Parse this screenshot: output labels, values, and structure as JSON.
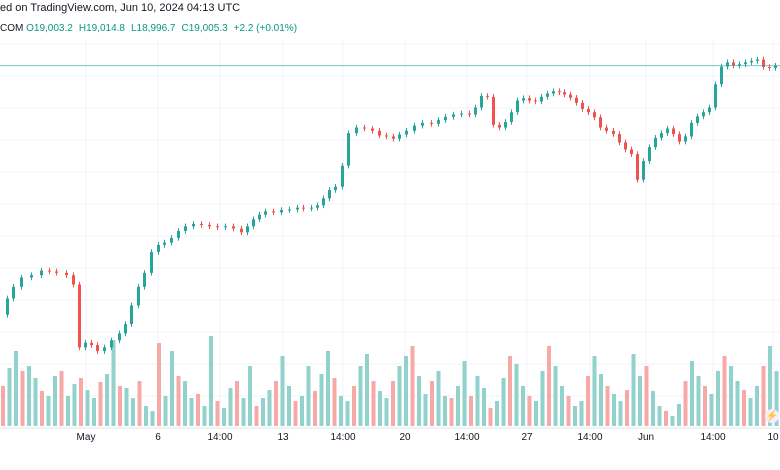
{
  "header": {
    "published": "ed on TradingView.com, Jun 10, 2024 04:13 UTC"
  },
  "ohlc": {
    "symbol": "COM",
    "open": "O19,003.2",
    "high": "H19,014.8",
    "low": "L18,996.7",
    "close": "C19,005.3",
    "change": "+2.2 (+0.01%)"
  },
  "colors": {
    "up": "#26a69a",
    "down": "#ef5350",
    "volume_up": "#92d2cc",
    "volume_down": "#f7a9a7",
    "last_price_line": "#26a69a",
    "grid": "#f0f3fa"
  },
  "icons": {
    "bolt": "lightning-icon"
  },
  "chart_data": {
    "type": "candlestick",
    "y_scale": "price, unlabeled (axis cut off)",
    "grid": true,
    "x_ticks": [
      "May",
      "6",
      "14:00",
      "13",
      "14:00",
      "20",
      "14:00",
      "27",
      "14:00",
      "Jun",
      "14:00",
      "10"
    ],
    "price_points": [
      [
        0,
        18310
      ],
      [
        6,
        18345
      ],
      [
        12,
        18370
      ],
      [
        20,
        18390
      ],
      [
        30,
        18395
      ],
      [
        40,
        18405
      ],
      [
        48,
        18403
      ],
      [
        55,
        18400
      ],
      [
        65,
        18395
      ],
      [
        72,
        18375
      ],
      [
        78,
        18240
      ],
      [
        84,
        18250
      ],
      [
        90,
        18245
      ],
      [
        96,
        18232
      ],
      [
        103,
        18240
      ],
      [
        110,
        18255
      ],
      [
        118,
        18270
      ],
      [
        124,
        18290
      ],
      [
        130,
        18330
      ],
      [
        137,
        18370
      ],
      [
        143,
        18400
      ],
      [
        150,
        18445
      ],
      [
        157,
        18460
      ],
      [
        163,
        18465
      ],
      [
        170,
        18475
      ],
      [
        177,
        18490
      ],
      [
        184,
        18500
      ],
      [
        192,
        18505
      ],
      [
        200,
        18503
      ],
      [
        208,
        18500
      ],
      [
        216,
        18498
      ],
      [
        224,
        18500
      ],
      [
        232,
        18495
      ],
      [
        240,
        18487
      ],
      [
        246,
        18500
      ],
      [
        252,
        18515
      ],
      [
        258,
        18525
      ],
      [
        264,
        18532
      ],
      [
        272,
        18530
      ],
      [
        280,
        18535
      ],
      [
        288,
        18536
      ],
      [
        296,
        18540
      ],
      [
        302,
        18538
      ],
      [
        310,
        18540
      ],
      [
        316,
        18545
      ],
      [
        322,
        18560
      ],
      [
        328,
        18578
      ],
      [
        334,
        18585
      ],
      [
        341,
        18630
      ],
      [
        347,
        18700
      ],
      [
        355,
        18712
      ],
      [
        363,
        18710
      ],
      [
        371,
        18705
      ],
      [
        378,
        18695
      ],
      [
        385,
        18693
      ],
      [
        392,
        18688
      ],
      [
        398,
        18697
      ],
      [
        405,
        18705
      ],
      [
        413,
        18716
      ],
      [
        421,
        18722
      ],
      [
        430,
        18720
      ],
      [
        437,
        18728
      ],
      [
        444,
        18735
      ],
      [
        452,
        18740
      ],
      [
        460,
        18742
      ],
      [
        468,
        18740
      ],
      [
        474,
        18755
      ],
      [
        480,
        18780
      ],
      [
        486,
        18778
      ],
      [
        492,
        18718
      ],
      [
        498,
        18712
      ],
      [
        504,
        18724
      ],
      [
        510,
        18745
      ],
      [
        516,
        18770
      ],
      [
        522,
        18775
      ],
      [
        528,
        18770
      ],
      [
        534,
        18768
      ],
      [
        540,
        18778
      ],
      [
        546,
        18785
      ],
      [
        552,
        18790
      ],
      [
        558,
        18788
      ],
      [
        563,
        18783
      ],
      [
        569,
        18776
      ],
      [
        575,
        18765
      ],
      [
        581,
        18752
      ],
      [
        587,
        18745
      ],
      [
        593,
        18734
      ],
      [
        599,
        18712
      ],
      [
        605,
        18705
      ],
      [
        612,
        18698
      ],
      [
        618,
        18680
      ],
      [
        624,
        18665
      ],
      [
        630,
        18655
      ],
      [
        636,
        18600
      ],
      [
        642,
        18640
      ],
      [
        648,
        18670
      ],
      [
        654,
        18690
      ],
      [
        660,
        18700
      ],
      [
        666,
        18710
      ],
      [
        672,
        18698
      ],
      [
        678,
        18682
      ],
      [
        684,
        18693
      ],
      [
        690,
        18722
      ],
      [
        696,
        18736
      ],
      [
        702,
        18745
      ],
      [
        708,
        18755
      ],
      [
        714,
        18805
      ],
      [
        720,
        18843
      ],
      [
        726,
        18852
      ],
      [
        732,
        18845
      ],
      [
        738,
        18848
      ],
      [
        744,
        18852
      ],
      [
        750,
        18855
      ],
      [
        756,
        18858
      ],
      [
        762,
        18842
      ],
      [
        768,
        18840
      ],
      [
        774,
        18845
      ]
    ],
    "volume_values": [
      40,
      58,
      75,
      55,
      60,
      48,
      35,
      30,
      50,
      55,
      30,
      42,
      48,
      36,
      28,
      44,
      52,
      86,
      40,
      38,
      28,
      45,
      20,
      15,
      83,
      30,
      75,
      50,
      45,
      28,
      32,
      20,
      90,
      25,
      18,
      38,
      45,
      28,
      60,
      20,
      28,
      36,
      45,
      70,
      40,
      25,
      30,
      60,
      35,
      52,
      75,
      48,
      30,
      25,
      40,
      60,
      72,
      45,
      35,
      28,
      45,
      60,
      70,
      80,
      50,
      32,
      45,
      55,
      30,
      28,
      40,
      65,
      30,
      50,
      38,
      18,
      25,
      48,
      70,
      62,
      40,
      30,
      25,
      55,
      80,
      60,
      40,
      30,
      20,
      25,
      50,
      70,
      52,
      40,
      32,
      25,
      36,
      72,
      50,
      60,
      35,
      20,
      15,
      10,
      22,
      45,
      65,
      50,
      40,
      32,
      55,
      70,
      60,
      45,
      36,
      28,
      40,
      60,
      80,
      55
    ]
  }
}
